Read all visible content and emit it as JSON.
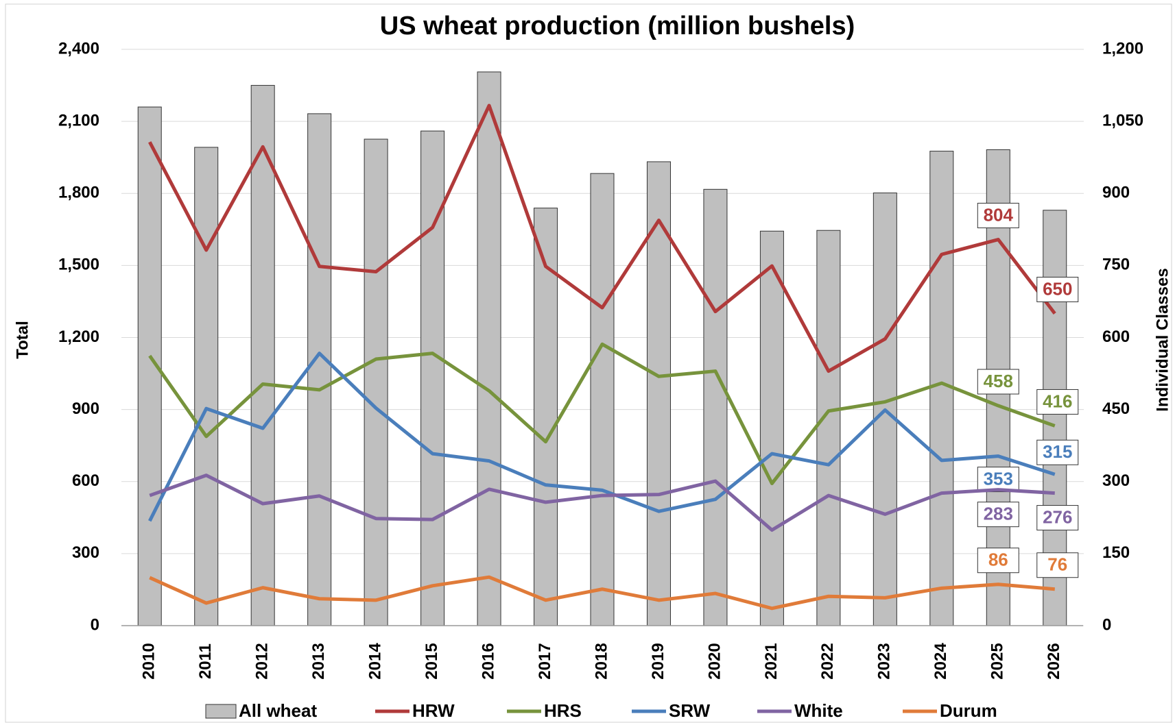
{
  "chart_data": {
    "type": "combo",
    "title": "US wheat production (million bushels)",
    "y_label": "Total",
    "y2_label": "Individual Classes",
    "categories": [
      "2010",
      "2011",
      "2012",
      "2013",
      "2014",
      "2015",
      "2016",
      "2017",
      "2018",
      "2019",
      "2020",
      "2021",
      "2022",
      "2023",
      "2024",
      "2025",
      "2026"
    ],
    "ylim": [
      0,
      2400
    ],
    "yticks": [
      0,
      300,
      600,
      900,
      {
        "value": 1200,
        "label": "1,200"
      },
      {
        "value": 1500,
        "label": "1,500"
      },
      {
        "value": 1800,
        "label": "1,800"
      },
      {
        "value": 2100,
        "label": "2,100"
      },
      {
        "value": 2400,
        "label": "2,400"
      }
    ],
    "y2lim": [
      0,
      1200
    ],
    "y2ticks": [
      0,
      150,
      300,
      450,
      600,
      750,
      900,
      {
        "value": 1050,
        "label": "1,050"
      },
      {
        "value": 1200,
        "label": "1,200"
      }
    ],
    "grid": true,
    "series": [
      {
        "name": "All wheat",
        "type": "bar",
        "color": "#bfbfbf",
        "values": [
          2160,
          1992,
          2250,
          2132,
          2026,
          2060,
          2306,
          1739,
          1883,
          1932,
          1817,
          1643,
          1646,
          1802,
          1976,
          1982,
          1730
        ]
      },
      {
        "name": "HRW",
        "type": "line",
        "axis": "y2",
        "color": "#b03a3a",
        "values": [
          1007,
          782,
          997,
          748,
          737,
          829,
          1083,
          748,
          662,
          844,
          654,
          749,
          530,
          597,
          773,
          804,
          650
        ],
        "value_labels": [
          null,
          null,
          null,
          null,
          null,
          null,
          null,
          null,
          null,
          null,
          null,
          null,
          null,
          null,
          null,
          "804",
          "650"
        ]
      },
      {
        "name": "HRS",
        "type": "line",
        "axis": "y2",
        "color": "#77933c",
        "values": [
          562,
          394,
          503,
          491,
          555,
          567,
          489,
          383,
          586,
          519,
          530,
          296,
          447,
          466,
          505,
          458,
          416
        ],
        "value_labels": [
          null,
          null,
          null,
          null,
          null,
          null,
          null,
          null,
          null,
          null,
          null,
          null,
          null,
          null,
          null,
          "458",
          "416"
        ]
      },
      {
        "name": "SRW",
        "type": "line",
        "axis": "y2",
        "color": "#4a7ebb",
        "values": [
          218,
          452,
          411,
          567,
          453,
          358,
          343,
          293,
          282,
          238,
          263,
          358,
          335,
          449,
          344,
          353,
          315
        ],
        "value_labels": [
          null,
          null,
          null,
          null,
          null,
          null,
          null,
          null,
          null,
          null,
          null,
          null,
          null,
          null,
          null,
          "353",
          "315"
        ]
      },
      {
        "name": "White",
        "type": "line",
        "axis": "y2",
        "color": "#8064a2",
        "values": [
          271,
          313,
          254,
          270,
          223,
          221,
          284,
          257,
          271,
          273,
          301,
          199,
          271,
          232,
          276,
          283,
          276
        ],
        "value_labels": [
          null,
          null,
          null,
          null,
          null,
          null,
          null,
          null,
          null,
          null,
          null,
          null,
          null,
          null,
          null,
          "283",
          "276"
        ]
      },
      {
        "name": "Durum",
        "type": "line",
        "axis": "y2",
        "color": "#e07b39",
        "values": [
          100,
          47,
          79,
          56,
          53,
          83,
          101,
          53,
          76,
          53,
          67,
          36,
          61,
          58,
          78,
          86,
          76
        ],
        "value_labels": [
          null,
          null,
          null,
          null,
          null,
          null,
          null,
          null,
          null,
          null,
          null,
          null,
          null,
          null,
          null,
          "86",
          "76"
        ]
      }
    ]
  }
}
